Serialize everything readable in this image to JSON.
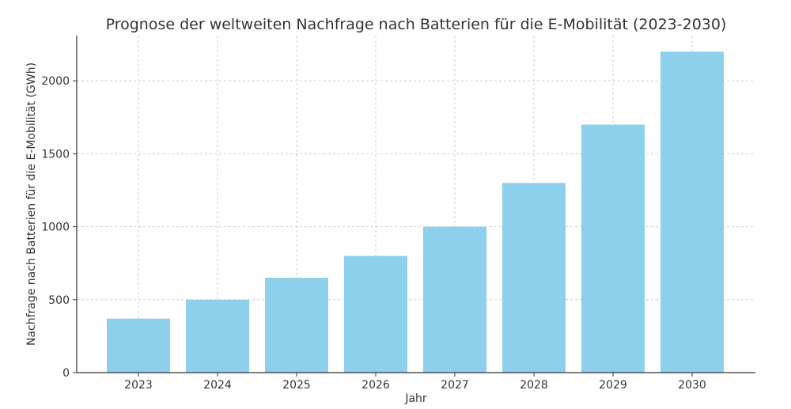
{
  "chart_data": {
    "type": "bar",
    "title": "Prognose der weltweiten Nachfrage nach Batterien für die E-Mobilität (2023-2030)",
    "xlabel": "Jahr",
    "ylabel": "Nachfrage nach Batterien für die E-Mobilität (GWh)",
    "categories": [
      "2023",
      "2024",
      "2025",
      "2026",
      "2027",
      "2028",
      "2029",
      "2030"
    ],
    "values": [
      370,
      500,
      650,
      800,
      1000,
      1300,
      1700,
      2200
    ],
    "ylim": [
      0,
      2310
    ],
    "yticks": [
      0,
      500,
      1000,
      1500,
      2000
    ],
    "grid": true,
    "bar_color": "#87CEEB"
  }
}
